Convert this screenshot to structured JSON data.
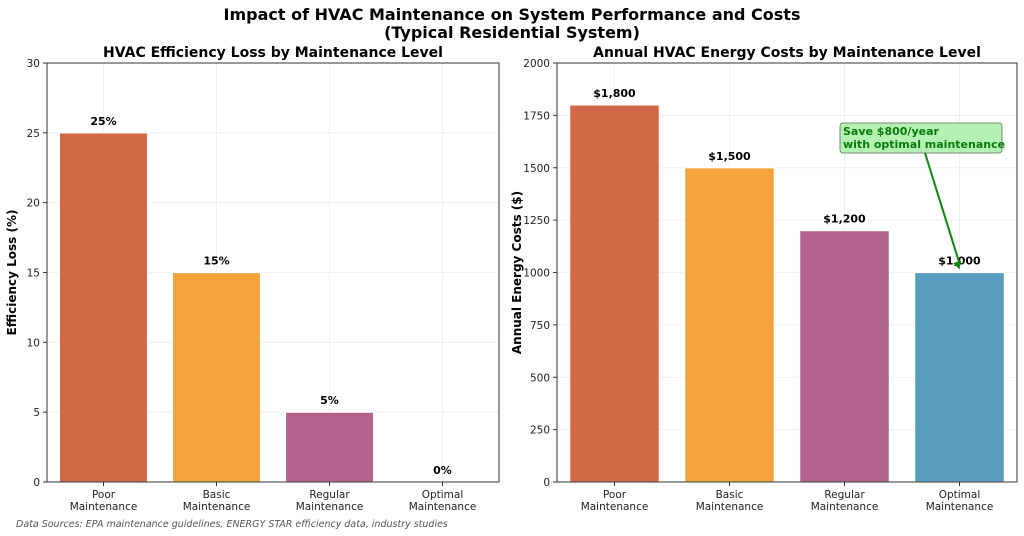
{
  "figure": {
    "suptitle_line1": "Impact of HVAC Maintenance on System Performance and Costs",
    "suptitle_line2": "(Typical Residential System)",
    "footnote": "Data Sources: EPA maintenance guidelines, ENERGY STAR efficiency data, industry studies"
  },
  "chart_data": [
    {
      "type": "bar",
      "title": "HVAC Efficiency Loss by Maintenance Level",
      "xlabel": "",
      "ylabel": "Efficiency Loss (%)",
      "categories": [
        [
          "Poor",
          "Maintenance"
        ],
        [
          "Basic",
          "Maintenance"
        ],
        [
          "Regular",
          "Maintenance"
        ],
        [
          "Optimal",
          "Maintenance"
        ]
      ],
      "values": [
        25,
        15,
        5,
        0
      ],
      "data_labels": [
        "25%",
        "15%",
        "5%",
        "0%"
      ],
      "colors": [
        "#d1603d",
        "#f29e2e",
        "#b05a88",
        "#4f97bb"
      ],
      "ylim": [
        0,
        30
      ],
      "yticks": [
        0,
        5,
        10,
        15,
        20,
        25,
        30
      ],
      "grid": true
    },
    {
      "type": "bar",
      "title": "Annual HVAC Energy Costs by Maintenance Level",
      "xlabel": "",
      "ylabel": "Annual Energy Costs ($)",
      "categories": [
        [
          "Poor",
          "Maintenance"
        ],
        [
          "Basic",
          "Maintenance"
        ],
        [
          "Regular",
          "Maintenance"
        ],
        [
          "Optimal",
          "Maintenance"
        ]
      ],
      "values": [
        1800,
        1500,
        1200,
        1000
      ],
      "data_labels": [
        "$1,800",
        "$1,500",
        "$1,200",
        "$1,000"
      ],
      "colors": [
        "#d1603d",
        "#f29e2e",
        "#b05a88",
        "#4f97bb"
      ],
      "ylim": [
        0,
        2000
      ],
      "yticks": [
        0,
        250,
        500,
        750,
        1000,
        1250,
        1500,
        1750,
        2000
      ],
      "grid": true,
      "annotation": {
        "lines": [
          "Save $800/year",
          "with optimal maintenance"
        ],
        "target_category_index": 3,
        "target_value": 1000,
        "text_color": "#0a7a0a",
        "box_color": "#b3f2b3",
        "arrow_color": "#0a8a0a"
      }
    }
  ]
}
